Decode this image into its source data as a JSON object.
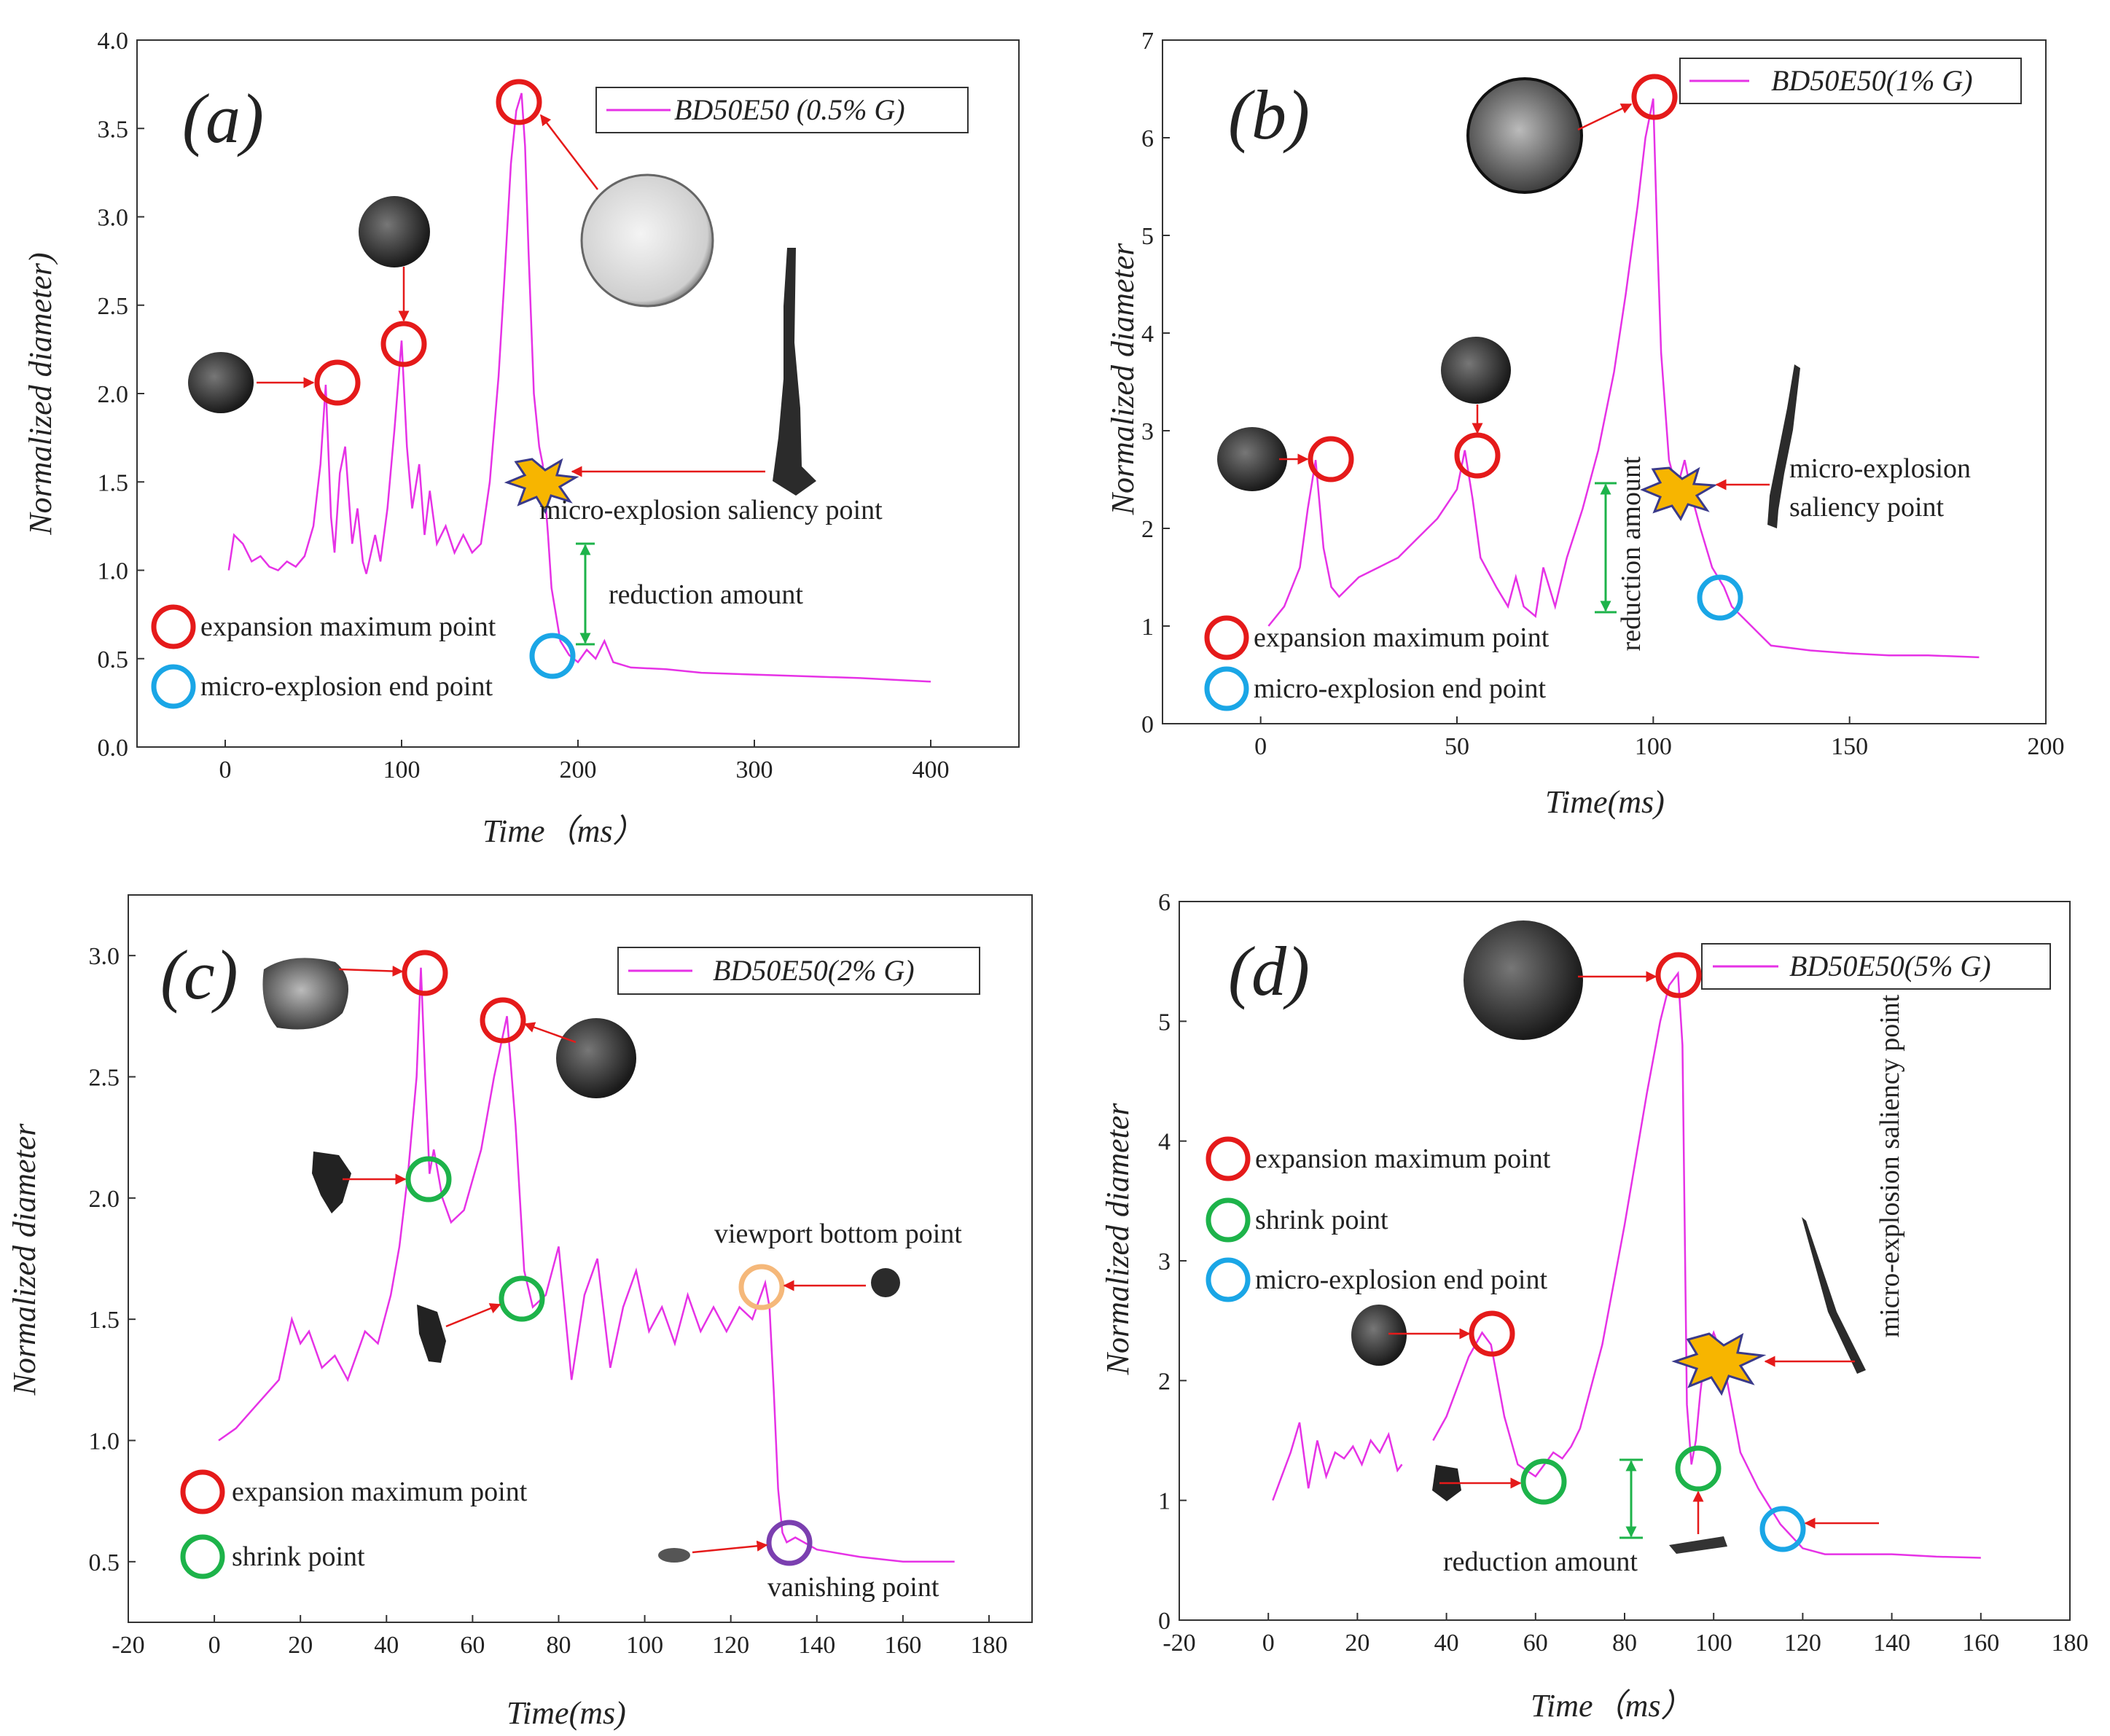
{
  "chart_data": [
    {
      "type": "line",
      "panel_label": "(a)",
      "xlabel": "Time（ms）",
      "ylabel": "Normalized diameter)",
      "xlim": [
        -50,
        450
      ],
      "ylim": [
        0,
        4
      ],
      "xticks": [
        0,
        100,
        200,
        300,
        400
      ],
      "yticks": [
        "0.0",
        "0.5",
        "1.0",
        "1.5",
        "2.0",
        "2.5",
        "3.0",
        "3.5",
        "4.0"
      ],
      "legend": "BD50E50 (0.5% G)",
      "legend_position": "top-right",
      "line_color": "#e632e6",
      "series": [
        {
          "name": "BD50E50 (0.5% G)",
          "x": [
            2,
            5,
            10,
            15,
            20,
            25,
            30,
            35,
            40,
            45,
            50,
            54,
            57,
            60,
            62,
            65,
            68,
            72,
            75,
            78,
            80,
            85,
            88,
            92,
            96,
            100,
            103,
            106,
            110,
            113,
            116,
            120,
            125,
            130,
            135,
            140,
            145,
            150,
            155,
            158,
            162,
            165,
            168,
            170,
            172,
            175,
            178,
            180,
            183,
            185,
            190,
            195,
            200,
            205,
            210,
            215,
            220,
            230,
            250,
            270,
            300,
            330,
            360,
            380,
            400
          ],
          "y": [
            1.0,
            1.2,
            1.15,
            1.05,
            1.08,
            1.02,
            1.0,
            1.05,
            1.02,
            1.08,
            1.25,
            1.6,
            2.05,
            1.3,
            1.1,
            1.55,
            1.7,
            1.15,
            1.35,
            1.05,
            0.98,
            1.2,
            1.05,
            1.35,
            1.8,
            2.3,
            1.7,
            1.35,
            1.6,
            1.2,
            1.45,
            1.15,
            1.25,
            1.1,
            1.2,
            1.1,
            1.15,
            1.5,
            2.1,
            2.6,
            3.3,
            3.6,
            3.7,
            3.4,
            2.8,
            2.0,
            1.7,
            1.6,
            1.2,
            0.9,
            0.6,
            0.52,
            0.48,
            0.55,
            0.5,
            0.6,
            0.48,
            0.45,
            0.44,
            0.42,
            0.41,
            0.4,
            0.39,
            0.38,
            0.37
          ]
        }
      ],
      "annotations": [
        {
          "text": "micro-explosion saliency point"
        },
        {
          "text": "reduction amount"
        },
        {
          "text": "expansion maximum point"
        },
        {
          "text": "micro-explosion end point"
        }
      ]
    },
    {
      "type": "line",
      "panel_label": "(b)",
      "xlabel": "Time(ms)",
      "ylabel": "Normalized diameter",
      "xlim": [
        -25,
        200
      ],
      "ylim": [
        0,
        7
      ],
      "xticks": [
        0,
        50,
        100,
        150,
        200
      ],
      "yticks": [
        "0",
        "1",
        "2",
        "3",
        "4",
        "5",
        "6",
        "7"
      ],
      "legend": "BD50E50(1% G)",
      "legend_position": "top-right",
      "line_color": "#e632e6",
      "series": [
        {
          "name": "BD50E50(1% G)",
          "x": [
            2,
            6,
            10,
            12,
            14,
            16,
            18,
            20,
            25,
            30,
            35,
            40,
            45,
            50,
            52,
            54,
            56,
            60,
            63,
            65,
            67,
            70,
            72,
            75,
            78,
            82,
            86,
            90,
            93,
            96,
            98,
            100,
            101,
            102,
            104,
            106,
            108,
            110,
            112,
            115,
            118,
            120,
            125,
            130,
            140,
            150,
            160,
            170,
            183
          ],
          "y": [
            1.0,
            1.2,
            1.6,
            2.2,
            2.7,
            1.8,
            1.4,
            1.3,
            1.5,
            1.6,
            1.7,
            1.9,
            2.1,
            2.4,
            2.8,
            2.3,
            1.7,
            1.4,
            1.2,
            1.5,
            1.2,
            1.1,
            1.6,
            1.2,
            1.7,
            2.2,
            2.8,
            3.6,
            4.4,
            5.3,
            6.0,
            6.4,
            5.0,
            3.8,
            2.7,
            2.4,
            2.7,
            2.3,
            2.0,
            1.6,
            1.4,
            1.2,
            1.0,
            0.8,
            0.75,
            0.72,
            0.7,
            0.7,
            0.68
          ]
        }
      ],
      "annotations": [
        {
          "text": "micro-explosion"
        },
        {
          "text": "saliency point"
        },
        {
          "text": "reduction amount"
        },
        {
          "text": "expansion maximum point"
        },
        {
          "text": "micro-explosion end point"
        }
      ]
    },
    {
      "type": "line",
      "panel_label": "(c)",
      "xlabel": "Time(ms)",
      "ylabel": "Normalized diameter",
      "xlim": [
        -20,
        190
      ],
      "ylim": [
        0.25,
        3.25
      ],
      "xticks": [
        -20,
        0,
        20,
        40,
        60,
        80,
        100,
        120,
        140,
        160,
        180
      ],
      "yticks": [
        "0.5",
        "1.0",
        "1.5",
        "2.0",
        "2.5",
        "3.0"
      ],
      "legend": "BD50E50(2% G)",
      "legend_position": "top-right",
      "line_color": "#e632e6",
      "series": [
        {
          "name": "BD50E50(2% G)",
          "x": [
            1,
            5,
            10,
            15,
            18,
            20,
            22,
            25,
            28,
            31,
            35,
            38,
            41,
            43,
            45,
            47,
            48,
            49,
            50,
            51,
            53,
            55,
            58,
            62,
            65,
            68,
            70,
            72,
            74,
            77,
            80,
            83,
            86,
            89,
            92,
            95,
            98,
            101,
            104,
            107,
            110,
            113,
            116,
            119,
            122,
            125,
            127,
            128,
            129,
            130,
            131,
            132,
            133,
            135,
            140,
            150,
            160,
            172
          ],
          "y": [
            1.0,
            1.05,
            1.15,
            1.25,
            1.5,
            1.4,
            1.45,
            1.3,
            1.35,
            1.25,
            1.45,
            1.4,
            1.6,
            1.8,
            2.1,
            2.5,
            2.95,
            2.5,
            2.1,
            2.2,
            2.0,
            1.9,
            1.95,
            2.2,
            2.5,
            2.75,
            2.3,
            1.7,
            1.55,
            1.6,
            1.8,
            1.25,
            1.6,
            1.75,
            1.3,
            1.55,
            1.7,
            1.45,
            1.55,
            1.4,
            1.6,
            1.45,
            1.55,
            1.45,
            1.55,
            1.5,
            1.6,
            1.65,
            1.55,
            1.2,
            0.8,
            0.62,
            0.58,
            0.6,
            0.55,
            0.52,
            0.5,
            0.5
          ]
        }
      ],
      "annotations": [
        {
          "text": "viewport bottom point"
        },
        {
          "text": "vanishing point"
        },
        {
          "text": "expansion maximum point"
        },
        {
          "text": "shrink point"
        }
      ]
    },
    {
      "type": "line",
      "panel_label": "(d)",
      "xlabel": "Time（ms）",
      "ylabel": "Normalized diameter",
      "xlim": [
        -20,
        180
      ],
      "ylim": [
        0,
        6
      ],
      "xticks": [
        -20,
        0,
        20,
        40,
        60,
        80,
        100,
        120,
        140,
        160,
        180
      ],
      "yticks": [
        "0",
        "1",
        "2",
        "3",
        "4",
        "5",
        "6"
      ],
      "legend": "BD50E50(5% G)",
      "legend_position": "top-right",
      "line_color": "#e632e6",
      "series": [
        {
          "name": "BD50E50(5% G)",
          "x": [
            1,
            3,
            5,
            7,
            9,
            11,
            13,
            15,
            17,
            19,
            21,
            23,
            25,
            27,
            29,
            30
          ],
          "y": [
            1.0,
            1.2,
            1.4,
            1.65,
            1.1,
            1.5,
            1.2,
            1.4,
            1.35,
            1.45,
            1.3,
            1.5,
            1.4,
            1.55,
            1.25,
            1.3
          ]
        },
        {
          "name": "BD50E50(5% G) cont.",
          "x": [
            37,
            40,
            45,
            48,
            50,
            53,
            56,
            60,
            62,
            64,
            66,
            68,
            70,
            75,
            80,
            85,
            88,
            90,
            92,
            93,
            94,
            95,
            96,
            97,
            98,
            100,
            102,
            104,
            106,
            110,
            115,
            120,
            125,
            130,
            140,
            150,
            160
          ],
          "y": [
            1.5,
            1.7,
            2.2,
            2.4,
            2.3,
            1.7,
            1.3,
            1.2,
            1.3,
            1.4,
            1.35,
            1.45,
            1.6,
            2.3,
            3.3,
            4.4,
            5.0,
            5.3,
            5.4,
            4.8,
            1.8,
            1.3,
            1.5,
            1.9,
            2.2,
            2.4,
            2.2,
            1.8,
            1.4,
            1.1,
            0.8,
            0.6,
            0.55,
            0.55,
            0.55,
            0.53,
            0.52
          ]
        }
      ],
      "annotations": [
        {
          "text": "micro-explosion saliency point"
        },
        {
          "text": "reduction amount"
        },
        {
          "text": "expansion maximum point"
        },
        {
          "text": "shrink point"
        },
        {
          "text": "micro-explosion end point"
        }
      ]
    }
  ]
}
